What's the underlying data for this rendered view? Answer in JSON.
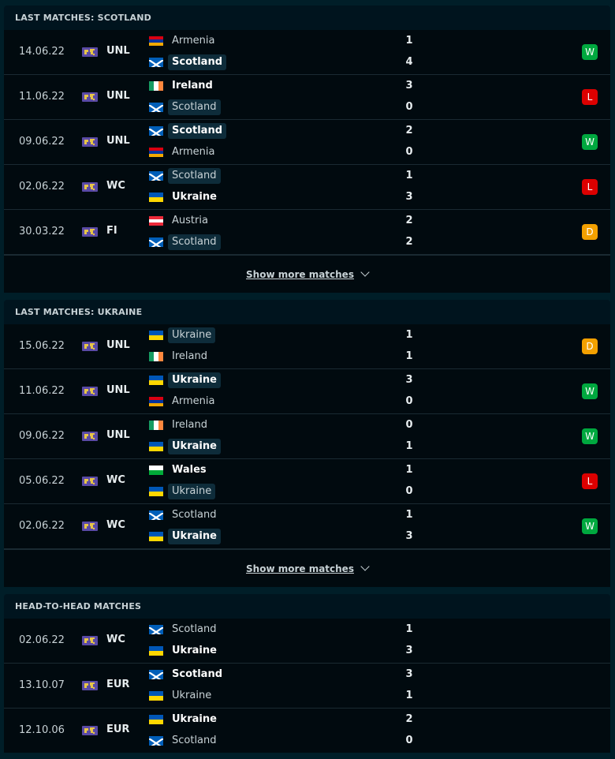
{
  "colors": {
    "win": "#00a83f",
    "loss": "#dc0000",
    "draw": "#f3a000",
    "background": "#001e28"
  },
  "sections": [
    {
      "title": "LAST MATCHES: SCOTLAND",
      "show_more": "Show more matches",
      "matches": [
        {
          "date": "14.06.22",
          "comp": "UNL",
          "home": {
            "name": "Armenia",
            "flag": "armenia",
            "win": false,
            "hl": false
          },
          "away": {
            "name": "Scotland",
            "flag": "scotland",
            "win": true,
            "hl": true
          },
          "hs": "1",
          "as": "4",
          "result": "W"
        },
        {
          "date": "11.06.22",
          "comp": "UNL",
          "home": {
            "name": "Ireland",
            "flag": "ireland",
            "win": true,
            "hl": false
          },
          "away": {
            "name": "Scotland",
            "flag": "scotland",
            "win": false,
            "hl": true
          },
          "hs": "3",
          "as": "0",
          "result": "L"
        },
        {
          "date": "09.06.22",
          "comp": "UNL",
          "home": {
            "name": "Scotland",
            "flag": "scotland",
            "win": true,
            "hl": true
          },
          "away": {
            "name": "Armenia",
            "flag": "armenia",
            "win": false,
            "hl": false
          },
          "hs": "2",
          "as": "0",
          "result": "W"
        },
        {
          "date": "02.06.22",
          "comp": "WC",
          "home": {
            "name": "Scotland",
            "flag": "scotland",
            "win": false,
            "hl": true
          },
          "away": {
            "name": "Ukraine",
            "flag": "ukraine",
            "win": true,
            "hl": false
          },
          "hs": "1",
          "as": "3",
          "result": "L"
        },
        {
          "date": "30.03.22",
          "comp": "FI",
          "home": {
            "name": "Austria",
            "flag": "austria",
            "win": false,
            "hl": false
          },
          "away": {
            "name": "Scotland",
            "flag": "scotland",
            "win": false,
            "hl": true
          },
          "hs": "2",
          "as": "2",
          "result": "D"
        }
      ]
    },
    {
      "title": "LAST MATCHES: UKRAINE",
      "show_more": "Show more matches",
      "matches": [
        {
          "date": "15.06.22",
          "comp": "UNL",
          "home": {
            "name": "Ukraine",
            "flag": "ukraine",
            "win": false,
            "hl": true
          },
          "away": {
            "name": "Ireland",
            "flag": "ireland",
            "win": false,
            "hl": false
          },
          "hs": "1",
          "as": "1",
          "result": "D"
        },
        {
          "date": "11.06.22",
          "comp": "UNL",
          "home": {
            "name": "Ukraine",
            "flag": "ukraine",
            "win": true,
            "hl": true
          },
          "away": {
            "name": "Armenia",
            "flag": "armenia",
            "win": false,
            "hl": false
          },
          "hs": "3",
          "as": "0",
          "result": "W"
        },
        {
          "date": "09.06.22",
          "comp": "UNL",
          "home": {
            "name": "Ireland",
            "flag": "ireland",
            "win": false,
            "hl": false
          },
          "away": {
            "name": "Ukraine",
            "flag": "ukraine",
            "win": true,
            "hl": true
          },
          "hs": "0",
          "as": "1",
          "result": "W"
        },
        {
          "date": "05.06.22",
          "comp": "WC",
          "home": {
            "name": "Wales",
            "flag": "wales",
            "win": true,
            "hl": false
          },
          "away": {
            "name": "Ukraine",
            "flag": "ukraine",
            "win": false,
            "hl": true
          },
          "hs": "1",
          "as": "0",
          "result": "L"
        },
        {
          "date": "02.06.22",
          "comp": "WC",
          "home": {
            "name": "Scotland",
            "flag": "scotland",
            "win": false,
            "hl": false
          },
          "away": {
            "name": "Ukraine",
            "flag": "ukraine",
            "win": true,
            "hl": true
          },
          "hs": "1",
          "as": "3",
          "result": "W"
        }
      ]
    },
    {
      "title": "HEAD-TO-HEAD MATCHES",
      "matches": [
        {
          "date": "02.06.22",
          "comp": "WC",
          "home": {
            "name": "Scotland",
            "flag": "scotland",
            "win": false,
            "hl": false
          },
          "away": {
            "name": "Ukraine",
            "flag": "ukraine",
            "win": true,
            "hl": false
          },
          "hs": "1",
          "as": "3",
          "result": ""
        },
        {
          "date": "13.10.07",
          "comp": "EUR",
          "home": {
            "name": "Scotland",
            "flag": "scotland",
            "win": true,
            "hl": false
          },
          "away": {
            "name": "Ukraine",
            "flag": "ukraine",
            "win": false,
            "hl": false
          },
          "hs": "3",
          "as": "1",
          "result": ""
        },
        {
          "date": "12.10.06",
          "comp": "EUR",
          "home": {
            "name": "Ukraine",
            "flag": "ukraine",
            "win": true,
            "hl": false
          },
          "away": {
            "name": "Scotland",
            "flag": "scotland",
            "win": false,
            "hl": false
          },
          "hs": "2",
          "as": "0",
          "result": ""
        }
      ]
    }
  ]
}
